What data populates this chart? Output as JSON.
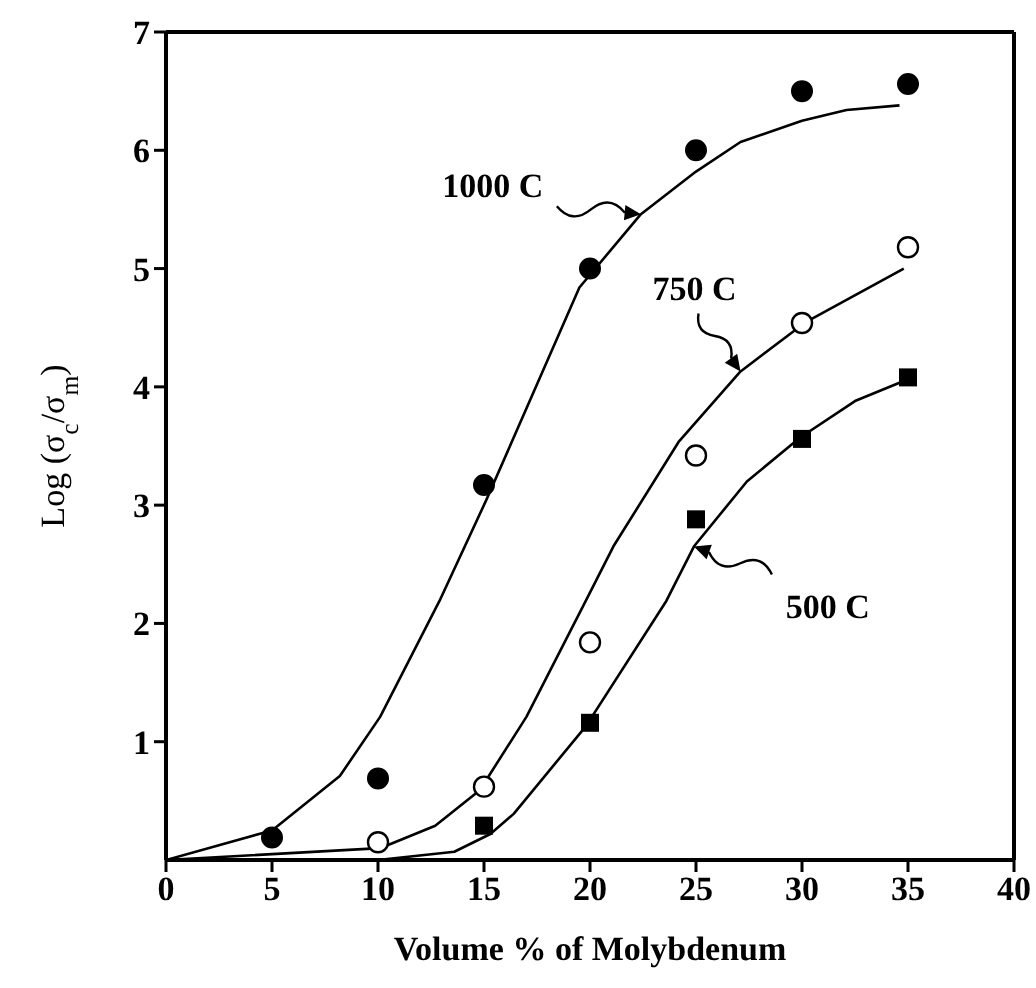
{
  "chart_data": {
    "type": "scatter",
    "xlabel": "Volume % of Molybdenum",
    "ylabel": "Log (σ$_{c}$/σ$_{m}$)",
    "xlim": [
      0,
      40
    ],
    "xticks": [
      0,
      5,
      10,
      15,
      20,
      25,
      30,
      35,
      40
    ],
    "ylim": [
      0,
      7
    ],
    "yticks": [
      1,
      2,
      3,
      4,
      5,
      6,
      7
    ],
    "series": [
      {
        "marker": "circle",
        "color": "#000000",
        "x": [
          5,
          10,
          15,
          20,
          25,
          30,
          35
        ],
        "values": [
          0.19,
          0.69,
          3.17,
          5.0,
          6.0,
          6.5,
          6.56
        ]
      },
      {
        "marker": "circle-open",
        "color": "#000000",
        "x": [
          10,
          15,
          20,
          25,
          30,
          35
        ],
        "values": [
          0.15,
          0.62,
          1.84,
          3.42,
          4.54,
          5.18
        ]
      },
      {
        "marker": "square",
        "color": "#000000",
        "x": [
          15,
          20,
          25,
          30,
          35
        ],
        "values": [
          0.29,
          1.16,
          2.88,
          3.56,
          4.08
        ]
      },
      {
        "type": "line",
        "name": "1000 C",
        "marker": "none",
        "line_style": "solid",
        "color": "#000000",
        "x": [
          0,
          5,
          8.2,
          10.1,
          12.9,
          15.1,
          19.5,
          22.4,
          25,
          27.1,
          30,
          32.1,
          34.6
        ],
        "values": [
          0,
          0.25,
          0.71,
          1.21,
          2.19,
          3.04,
          4.84,
          5.46,
          5.82,
          6.07,
          6.25,
          6.34,
          6.38
        ]
      },
      {
        "type": "line",
        "name": "750 C",
        "marker": "none",
        "line_style": "solid",
        "color": "#000000",
        "x": [
          0,
          10.1,
          12.7,
          14.8,
          17,
          19.8,
          21.1,
          24.2,
          27.1,
          30.2,
          34.8
        ],
        "values": [
          0,
          0.1,
          0.29,
          0.59,
          1.21,
          2.19,
          2.65,
          3.54,
          4.13,
          4.55,
          5.0
        ]
      },
      {
        "type": "line",
        "name": "500 C",
        "marker": "none",
        "line_style": "solid",
        "color": "#000000",
        "x": [
          0,
          10,
          13.6,
          15.3,
          16.4,
          19.8,
          23.6,
          24.9,
          27.4,
          29.9,
          32.5,
          34.8
        ],
        "values": [
          0,
          0,
          0.07,
          0.22,
          0.39,
          1.13,
          2.19,
          2.65,
          3.2,
          3.57,
          3.88,
          4.05
        ]
      }
    ]
  }
}
